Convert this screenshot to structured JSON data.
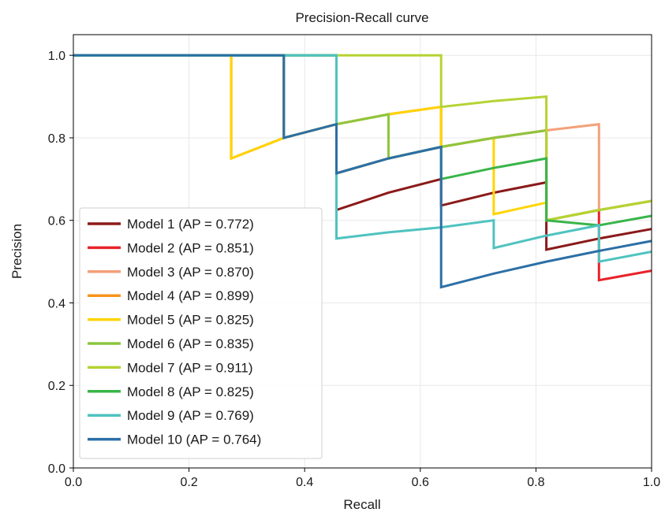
{
  "chart_data": {
    "type": "line",
    "title": "Precision-Recall curve",
    "xlabel": "Recall",
    "ylabel": "Precision",
    "xlim": [
      0,
      1
    ],
    "ylim": [
      0,
      1.05
    ],
    "xticks": [
      "0.0",
      "0.2",
      "0.4",
      "0.6",
      "0.8",
      "1.0"
    ],
    "yticks": [
      "0.0",
      "0.2",
      "0.4",
      "0.6",
      "0.8",
      "1.0"
    ],
    "grid": true,
    "legend_position": "lower-left",
    "series": [
      {
        "name": "Model 1 (AP = 0.772)",
        "color": "#8b1a1a",
        "x": [
          0,
          0.455,
          0.455,
          0.545,
          0.636,
          0.636,
          0.727,
          0.818,
          0.818,
          0.909,
          1.0
        ],
        "y": [
          1.0,
          1.0,
          0.625,
          0.667,
          0.7,
          0.636,
          0.667,
          0.692,
          0.529,
          0.556,
          0.579
        ]
      },
      {
        "name": "Model 2 (AP = 0.851)",
        "color": "#e8232b",
        "x": [
          0,
          0.364,
          0.364,
          0.455,
          0.455,
          0.545,
          0.636,
          0.636,
          0.727,
          0.818,
          0.818,
          0.909,
          0.909,
          1.0
        ],
        "y": [
          1.0,
          1.0,
          0.8,
          0.833,
          0.714,
          0.75,
          0.778,
          0.778,
          0.8,
          0.818,
          0.6,
          0.625,
          0.455,
          0.478
        ]
      },
      {
        "name": "Model 3 (AP = 0.870)",
        "color": "#f4a07a",
        "x": [
          0,
          0.273,
          0.273,
          0.364,
          0.455,
          0.545,
          0.636,
          0.636,
          0.727,
          0.818,
          0.909,
          0.909,
          1.0
        ],
        "y": [
          1.0,
          1.0,
          0.75,
          0.8,
          0.833,
          0.857,
          0.875,
          0.778,
          0.8,
          0.818,
          0.833,
          0.625,
          0.647
        ]
      },
      {
        "name": "Model 4 (AP = 0.899)",
        "color": "#f7941d",
        "x": [
          0,
          0.273,
          0.273,
          0.364,
          0.455,
          0.545,
          0.636,
          0.636,
          0.727,
          0.818,
          0.818,
          0.909,
          1.0
        ],
        "y": [
          1.0,
          1.0,
          0.75,
          0.8,
          0.833,
          0.857,
          0.875,
          0.778,
          0.8,
          0.818,
          0.6,
          0.625,
          0.647
        ]
      },
      {
        "name": "Model 5 (AP = 0.825)",
        "color": "#ffd400",
        "x": [
          0,
          0.273,
          0.273,
          0.364,
          0.455,
          0.545,
          0.636,
          0.636,
          0.727,
          0.727,
          0.818,
          0.818,
          0.909,
          1.0
        ],
        "y": [
          1.0,
          1.0,
          0.75,
          0.8,
          0.833,
          0.857,
          0.875,
          0.778,
          0.8,
          0.615,
          0.643,
          0.6,
          0.625,
          0.647
        ]
      },
      {
        "name": "Model 6 (AP = 0.835)",
        "color": "#8cc63f",
        "x": [
          0,
          0.364,
          0.364,
          0.455,
          0.545,
          0.545,
          0.636,
          0.727,
          0.818,
          0.818,
          0.909,
          1.0
        ],
        "y": [
          1.0,
          1.0,
          0.8,
          0.833,
          0.857,
          0.75,
          0.778,
          0.8,
          0.818,
          0.6,
          0.625,
          0.647
        ]
      },
      {
        "name": "Model 7 (AP = 0.911)",
        "color": "#b5d334",
        "x": [
          0,
          0.636,
          0.636,
          0.727,
          0.818,
          0.818,
          0.909,
          1.0
        ],
        "y": [
          1.0,
          1.0,
          0.875,
          0.889,
          0.9,
          0.6,
          0.625,
          0.647
        ]
      },
      {
        "name": "Model 8 (AP = 0.825)",
        "color": "#39b54a",
        "x": [
          0,
          0.455,
          0.455,
          0.545,
          0.636,
          0.636,
          0.727,
          0.818,
          0.818,
          0.909,
          1.0
        ],
        "y": [
          1.0,
          1.0,
          0.714,
          0.75,
          0.778,
          0.7,
          0.727,
          0.75,
          0.6,
          0.588,
          0.611
        ]
      },
      {
        "name": "Model 9 (AP = 0.769)",
        "color": "#4fc3c0",
        "x": [
          0,
          0.455,
          0.455,
          0.545,
          0.636,
          0.727,
          0.727,
          0.818,
          0.909,
          0.909,
          1.0
        ],
        "y": [
          1.0,
          1.0,
          0.556,
          0.571,
          0.583,
          0.6,
          0.533,
          0.563,
          0.588,
          0.5,
          0.524
        ]
      },
      {
        "name": "Model 10 (AP = 0.764)",
        "color": "#2c6fa6",
        "x": [
          0,
          0.364,
          0.364,
          0.455,
          0.455,
          0.545,
          0.636,
          0.636,
          0.727,
          0.818,
          0.909,
          1.0
        ],
        "y": [
          1.0,
          1.0,
          0.8,
          0.833,
          0.714,
          0.75,
          0.778,
          0.438,
          0.471,
          0.5,
          0.526,
          0.55
        ]
      }
    ]
  }
}
